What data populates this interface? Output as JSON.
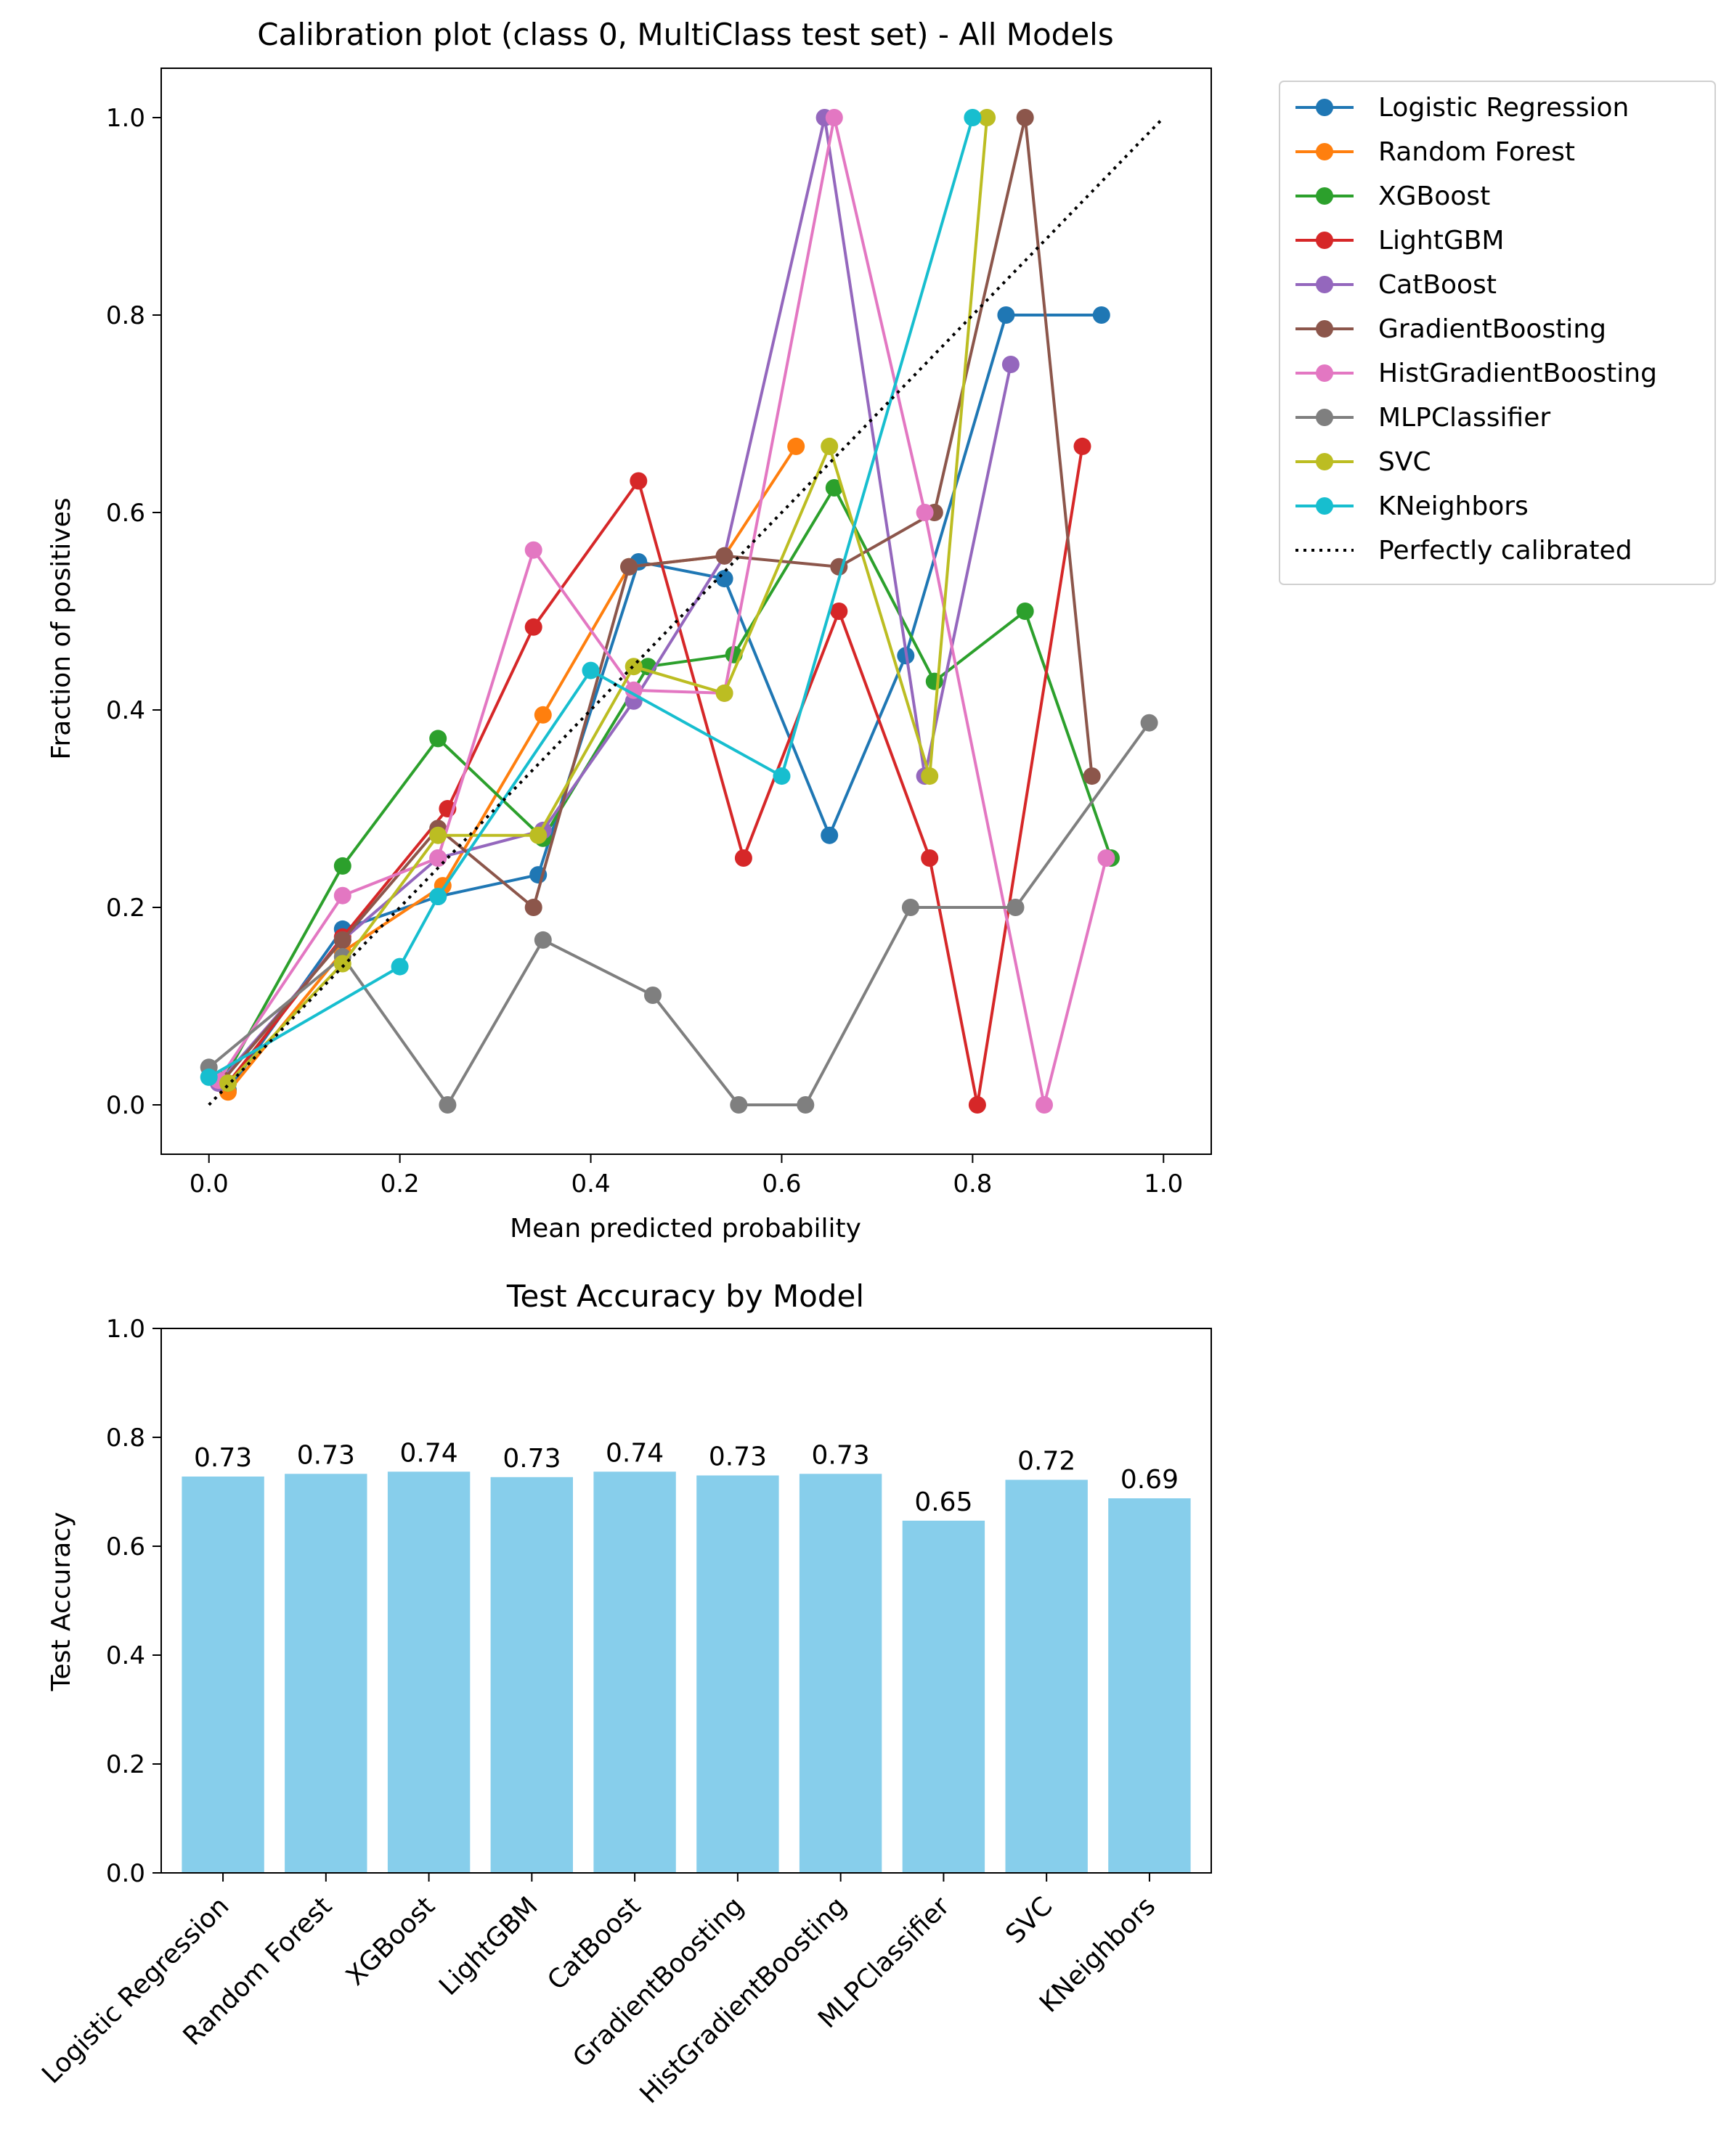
{
  "chart_data": [
    {
      "type": "line",
      "title": "Calibration plot (class 0, MultiClass test set) - All Models",
      "xlabel": "Mean predicted probability",
      "ylabel": "Fraction of positives",
      "xlim": [
        -0.05,
        1.05
      ],
      "ylim": [
        -0.05,
        1.05
      ],
      "xticks": [
        0.0,
        0.2,
        0.4,
        0.6,
        0.8,
        1.0
      ],
      "yticks": [
        0.0,
        0.2,
        0.4,
        0.6,
        0.8,
        1.0
      ],
      "xtick_labels": [
        "0.0",
        "0.2",
        "0.4",
        "0.6",
        "0.8",
        "1.0"
      ],
      "ytick_labels": [
        "0.0",
        "0.2",
        "0.4",
        "0.6",
        "0.8",
        "1.0"
      ],
      "grid": false,
      "legend_position": "outside-top-right",
      "series": [
        {
          "name": "Logistic Regression",
          "color": "#1f77b4",
          "points": [
            [
              0.02,
              0.015
            ],
            [
              0.14,
              0.178
            ],
            [
              0.24,
              0.211
            ],
            [
              0.345,
              0.233
            ],
            [
              0.45,
              0.55
            ],
            [
              0.54,
              0.533
            ],
            [
              0.65,
              0.273
            ],
            [
              0.73,
              0.455
            ],
            [
              0.835,
              0.8
            ],
            [
              0.935,
              0.8
            ]
          ]
        },
        {
          "name": "Random Forest",
          "color": "#ff7f0e",
          "points": [
            [
              0.02,
              0.013
            ],
            [
              0.14,
              0.155
            ],
            [
              0.245,
              0.222
            ],
            [
              0.35,
              0.395
            ],
            [
              0.44,
              0.545
            ],
            [
              0.54,
              0.556
            ],
            [
              0.615,
              0.667
            ]
          ]
        },
        {
          "name": "XGBoost",
          "color": "#2ca02c",
          "points": [
            [
              0.015,
              0.025
            ],
            [
              0.14,
              0.242
            ],
            [
              0.24,
              0.371
            ],
            [
              0.35,
              0.27
            ],
            [
              0.46,
              0.444
            ],
            [
              0.55,
              0.456
            ],
            [
              0.655,
              0.625
            ],
            [
              0.76,
              0.429
            ],
            [
              0.855,
              0.5
            ],
            [
              0.945,
              0.25
            ]
          ]
        },
        {
          "name": "LightGBM",
          "color": "#d62728",
          "points": [
            [
              0.02,
              0.022
            ],
            [
              0.14,
              0.17
            ],
            [
              0.25,
              0.3
            ],
            [
              0.34,
              0.484
            ],
            [
              0.45,
              0.632
            ],
            [
              0.56,
              0.25
            ],
            [
              0.66,
              0.5
            ],
            [
              0.755,
              0.25
            ],
            [
              0.805,
              0.0
            ],
            [
              0.915,
              0.667
            ]
          ]
        },
        {
          "name": "CatBoost",
          "color": "#9467bd",
          "points": [
            [
              0.01,
              0.022
            ],
            [
              0.14,
              0.167
            ],
            [
              0.24,
              0.25
            ],
            [
              0.35,
              0.278
            ],
            [
              0.445,
              0.409
            ],
            [
              0.54,
              0.556
            ],
            [
              0.645,
              1.0
            ],
            [
              0.75,
              0.333
            ],
            [
              0.84,
              0.75
            ]
          ]
        },
        {
          "name": "GradientBoosting",
          "color": "#8c564b",
          "points": [
            [
              0.015,
              0.025
            ],
            [
              0.14,
              0.167
            ],
            [
              0.24,
              0.28
            ],
            [
              0.34,
              0.2
            ],
            [
              0.44,
              0.545
            ],
            [
              0.54,
              0.556
            ],
            [
              0.66,
              0.545
            ],
            [
              0.76,
              0.6
            ],
            [
              0.855,
              1.0
            ],
            [
              0.925,
              0.333
            ]
          ]
        },
        {
          "name": "HistGradientBoosting",
          "color": "#e377c2",
          "points": [
            [
              0.01,
              0.025
            ],
            [
              0.14,
              0.212
            ],
            [
              0.24,
              0.25
            ],
            [
              0.34,
              0.562
            ],
            [
              0.445,
              0.42
            ],
            [
              0.54,
              0.417
            ],
            [
              0.655,
              1.0
            ],
            [
              0.75,
              0.6
            ],
            [
              0.875,
              0.0
            ],
            [
              0.94,
              0.25
            ]
          ]
        },
        {
          "name": "MLPClassifier",
          "color": "#7f7f7f",
          "points": [
            [
              0.0,
              0.038
            ],
            [
              0.14,
              0.15
            ],
            [
              0.25,
              0.0
            ],
            [
              0.35,
              0.167
            ],
            [
              0.465,
              0.111
            ],
            [
              0.555,
              0.0
            ],
            [
              0.625,
              0.0
            ],
            [
              0.735,
              0.2
            ],
            [
              0.845,
              0.2
            ],
            [
              0.985,
              0.387
            ]
          ]
        },
        {
          "name": "SVC",
          "color": "#bcbd22",
          "points": [
            [
              0.02,
              0.022
            ],
            [
              0.14,
              0.143
            ],
            [
              0.24,
              0.273
            ],
            [
              0.345,
              0.273
            ],
            [
              0.445,
              0.444
            ],
            [
              0.54,
              0.417
            ],
            [
              0.65,
              0.667
            ],
            [
              0.755,
              0.333
            ],
            [
              0.815,
              1.0
            ]
          ]
        },
        {
          "name": "KNeighbors",
          "color": "#17becf",
          "points": [
            [
              0.0,
              0.028
            ],
            [
              0.2,
              0.14
            ],
            [
              0.24,
              0.211
            ],
            [
              0.4,
              0.44
            ],
            [
              0.6,
              0.333
            ],
            [
              0.8,
              1.0
            ]
          ]
        },
        {
          "name": "Perfectly calibrated",
          "color": "#000000",
          "style": "dotted",
          "points": [
            [
              0,
              0
            ],
            [
              1,
              1
            ]
          ]
        }
      ]
    },
    {
      "type": "bar",
      "title": "Test Accuracy by Model",
      "xlabel": "",
      "ylabel": "Test Accuracy",
      "ylim": [
        0,
        1.0
      ],
      "yticks": [
        0.0,
        0.2,
        0.4,
        0.6,
        0.8,
        1.0
      ],
      "ytick_labels": [
        "0.0",
        "0.2",
        "0.4",
        "0.6",
        "0.8",
        "1.0"
      ],
      "bar_color": "#87ceeb",
      "categories": [
        "Logistic Regression",
        "Random Forest",
        "XGBoost",
        "LightGBM",
        "CatBoost",
        "GradientBoosting",
        "HistGradientBoosting",
        "MLPClassifier",
        "SVC",
        "KNeighbors"
      ],
      "values": [
        0.728,
        0.733,
        0.737,
        0.727,
        0.737,
        0.73,
        0.733,
        0.647,
        0.722,
        0.688
      ],
      "value_labels": [
        "0.73",
        "0.73",
        "0.74",
        "0.73",
        "0.74",
        "0.73",
        "0.73",
        "0.65",
        "0.72",
        "0.69"
      ]
    }
  ]
}
